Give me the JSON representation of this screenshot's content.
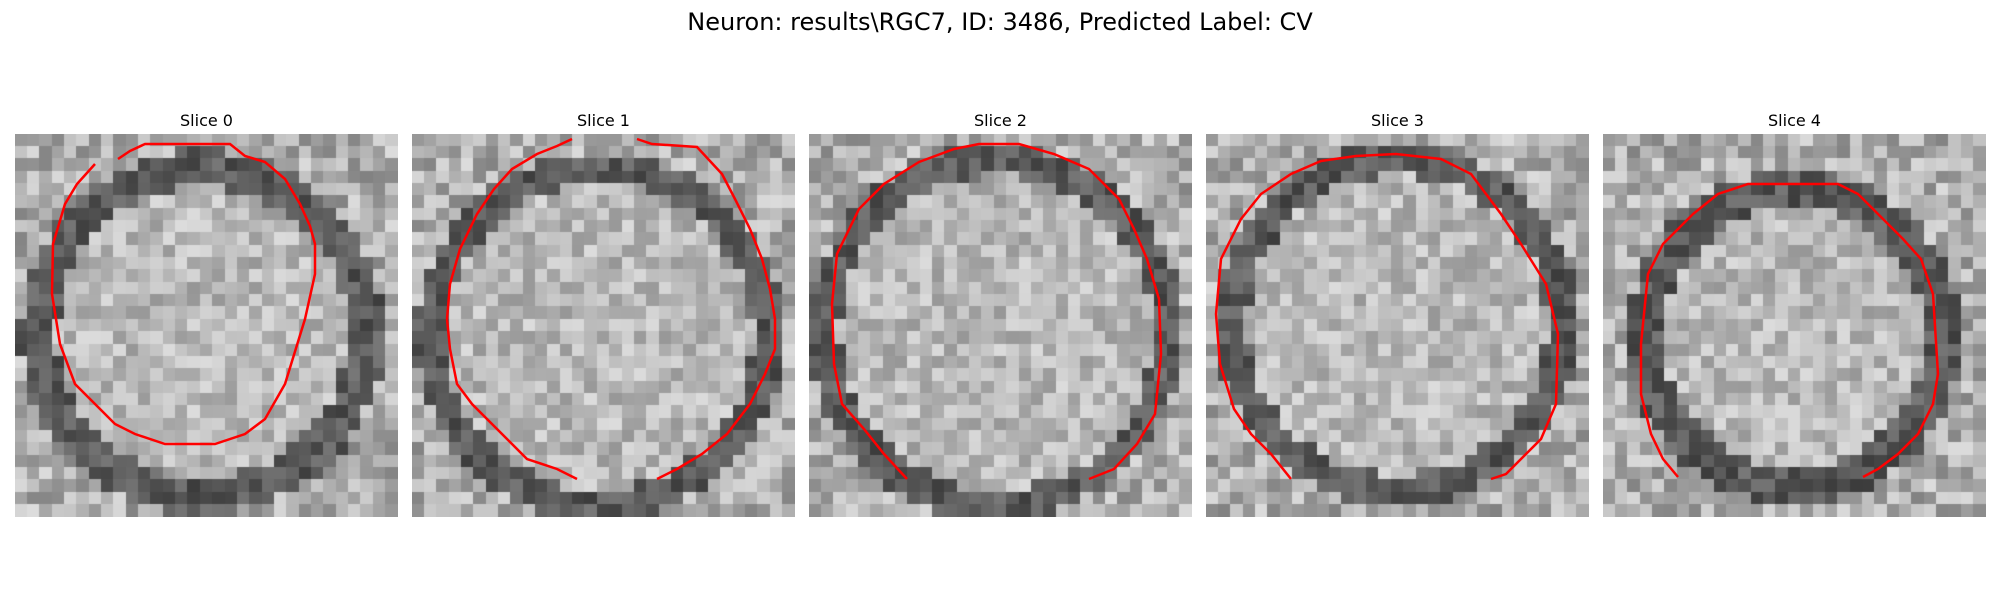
{
  "title": "Neuron: results\\RGC7, ID: 3486, Predicted Label: CV",
  "contour_color": "#ff0000",
  "slices": [
    {
      "label": "Slice 0"
    },
    {
      "label": "Slice 1"
    },
    {
      "label": "Slice 2"
    },
    {
      "label": "Slice 3"
    },
    {
      "label": "Slice 4"
    }
  ]
}
